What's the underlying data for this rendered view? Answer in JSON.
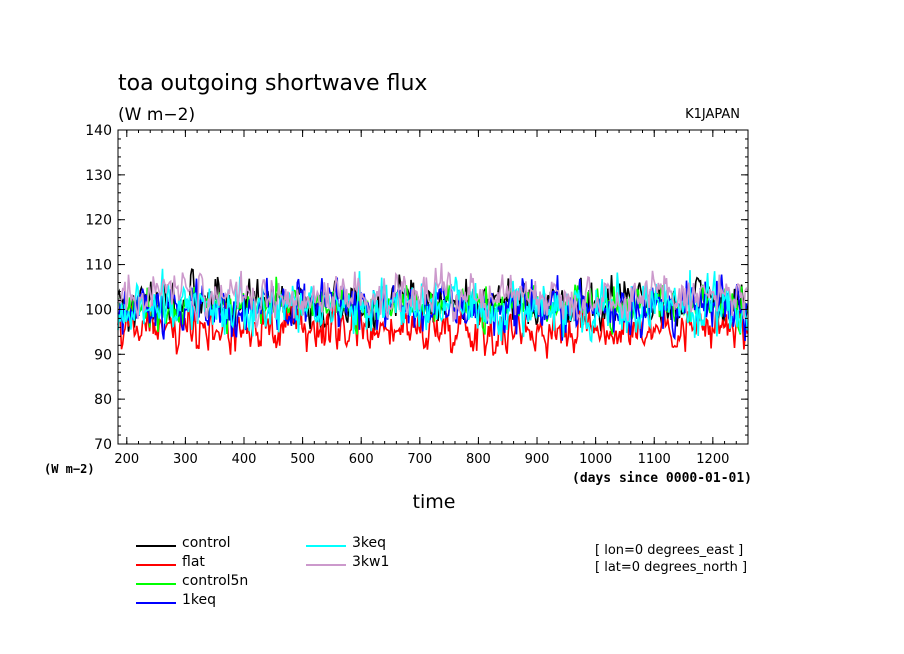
{
  "chart_data": {
    "type": "line",
    "title": "toa outgoing shortwave flux",
    "units": "(W m−2)",
    "dataset_label": "K1JAPAN",
    "xlabel": "time",
    "xunits": "(days since 0000-01-01)",
    "yunits_left": "(W m−2)",
    "xlim": [
      185,
      1260
    ],
    "ylim": [
      70,
      140
    ],
    "x_ticks": [
      200,
      300,
      400,
      500,
      600,
      700,
      800,
      900,
      1000,
      1100,
      1200
    ],
    "y_ticks": [
      70,
      80,
      90,
      100,
      110,
      120,
      130,
      140
    ],
    "grid": false,
    "legend_position": "bottom-left",
    "notes": [
      "[ lon=0 degrees_east ]",
      "[ lat=0 degrees_north ]"
    ],
    "series": [
      {
        "name": "control",
        "color": "#000000",
        "mean": 101.5,
        "amplitude": 3.8,
        "seed": 11
      },
      {
        "name": "flat",
        "color": "#ff0000",
        "mean": 96.0,
        "amplitude": 3.6,
        "seed": 23
      },
      {
        "name": "control5n",
        "color": "#00ff00",
        "mean": 100.0,
        "amplitude": 3.2,
        "seed": 37
      },
      {
        "name": "1keq",
        "color": "#0000ff",
        "mean": 100.5,
        "amplitude": 4.0,
        "seed": 41
      },
      {
        "name": "3keq",
        "color": "#00ffff",
        "mean": 100.5,
        "amplitude": 4.2,
        "seed": 53
      },
      {
        "name": "3kw1",
        "color": "#cc99cc",
        "mean": 103.0,
        "amplitude": 3.4,
        "seed": 67
      }
    ]
  }
}
